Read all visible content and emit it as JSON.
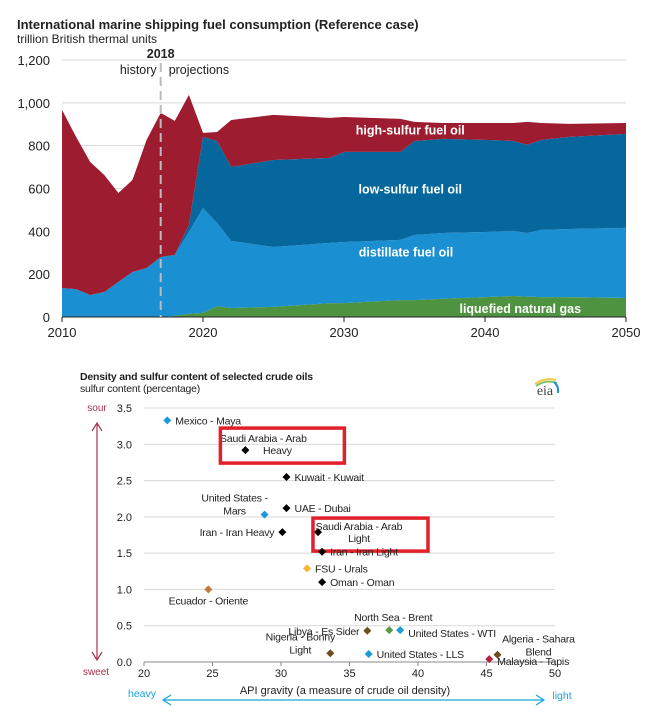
{
  "chart_data": [
    {
      "type": "area",
      "stacked": true,
      "title": "International marine shipping fuel consumption (Reference case)",
      "subtitle": "trillion British thermal units",
      "xlabel": "",
      "ylabel": "trillion British thermal units",
      "xlim": [
        2010,
        2050
      ],
      "ylim": [
        0,
        1200
      ],
      "xticks": [
        "2010",
        "2020",
        "2030",
        "2040",
        "2050"
      ],
      "yticks": [
        "0",
        "200",
        "400",
        "600",
        "800",
        "1,000",
        "1,200"
      ],
      "grid": true,
      "divider": {
        "year": 2017,
        "label": "2018",
        "left_label": "history",
        "right_label": "projections"
      },
      "x": [
        2010,
        2011,
        2012,
        2013,
        2014,
        2015,
        2016,
        2017,
        2018,
        2019,
        2020,
        2021,
        2022,
        2025,
        2029,
        2030,
        2034,
        2035,
        2037,
        2040,
        2042,
        2043,
        2044,
        2046,
        2050
      ],
      "series": [
        {
          "name": "liquefied natural gas",
          "color": "#4e9340",
          "values": [
            0,
            0,
            0,
            0,
            0,
            0,
            0,
            0,
            5,
            15,
            19,
            50,
            42,
            47,
            65,
            65,
            79,
            79,
            85,
            93,
            98,
            95,
            93,
            93,
            89
          ]
        },
        {
          "name": "distillate fuel oil",
          "color": "#1a90d2",
          "values": [
            135,
            130,
            103,
            117,
            164,
            210,
            229,
            280,
            285,
            382,
            490,
            389,
            313,
            280,
            281,
            285,
            281,
            304,
            307,
            304,
            304,
            297,
            314,
            318,
            327
          ]
        },
        {
          "name": "low-sulfur fuel oil",
          "color": "#06679c",
          "values": [
            0,
            0,
            0,
            0,
            0,
            0,
            0,
            0,
            0,
            33,
            332,
            383,
            346,
            406,
            397,
            421,
            411,
            439,
            440,
            430,
            420,
            412,
            420,
            430,
            439
          ]
        },
        {
          "name": "high-sulfur fuel oil",
          "color": "#9d1c30",
          "values": [
            832,
            711,
            621,
            546,
            415,
            430,
            598,
            673,
            626,
            607,
            19,
            42,
            219,
            211,
            187,
            163,
            154,
            89,
            74,
            79,
            84,
            107,
            79,
            61,
            51
          ]
        }
      ]
    },
    {
      "type": "scatter",
      "title": "Density and sulfur content of selected crude oils",
      "subtitle": "sulfur content (percentage)",
      "xlabel": "API gravity (a measure of crude oil density)",
      "ylabel": "sulfur content (percentage)",
      "xlim": [
        20,
        50
      ],
      "ylim": [
        0,
        3.5
      ],
      "xticks": [
        "20",
        "25",
        "30",
        "35",
        "40",
        "45",
        "50"
      ],
      "yticks": [
        "0.0",
        "0.5",
        "1.0",
        "1.5",
        "2.0",
        "2.5",
        "3.0",
        "3.5"
      ],
      "grid": true,
      "y_arrow": {
        "top": "sour",
        "bottom": "sweet"
      },
      "x_arrow": {
        "left": "heavy",
        "right": "light"
      },
      "points": [
        {
          "label": [
            "Mexico - Maya"
          ],
          "x": 21.7,
          "y": 3.33,
          "color": "#1a9ad6",
          "label_pos": "right",
          "highlight": false
        },
        {
          "label": [
            "Saudi Arabia - Arab",
            "Heavy"
          ],
          "x": 27.4,
          "y": 2.92,
          "color": "#000000",
          "label_pos": "right-two",
          "highlight": true
        },
        {
          "label": [
            "Kuwait - Kuwait"
          ],
          "x": 30.4,
          "y": 2.55,
          "color": "#000000",
          "label_pos": "right",
          "highlight": false
        },
        {
          "label": [
            "UAE - Dubai"
          ],
          "x": 30.4,
          "y": 2.12,
          "color": "#000000",
          "label_pos": "right",
          "highlight": false
        },
        {
          "label": [
            "United States -",
            "Mars"
          ],
          "x": 28.8,
          "y": 2.03,
          "color": "#1a9ad6",
          "label_pos": "left-two",
          "highlight": false
        },
        {
          "label": [
            "Iran - Iran Heavy"
          ],
          "x": 30.1,
          "y": 1.79,
          "color": "#000000",
          "label_pos": "left",
          "highlight": false
        },
        {
          "label": [
            "Saudi Arabia - Arab",
            "Light"
          ],
          "x": 32.7,
          "y": 1.79,
          "color": "#000000",
          "label_pos": "right-two",
          "highlight": true
        },
        {
          "label": [
            "Iran - Iran Light"
          ],
          "x": 33.0,
          "y": 1.52,
          "color": "#000000",
          "label_pos": "right",
          "highlight": false
        },
        {
          "label": [
            "FSU - Urals"
          ],
          "x": 31.9,
          "y": 1.29,
          "color": "#f6b731",
          "label_pos": "right",
          "highlight": false
        },
        {
          "label": [
            "Oman - Oman"
          ],
          "x": 33.0,
          "y": 1.1,
          "color": "#000000",
          "label_pos": "right",
          "highlight": false
        },
        {
          "label": [
            "Ecuador - Oriente"
          ],
          "x": 24.7,
          "y": 1.0,
          "color": "#c07a3c",
          "label_pos": "below",
          "highlight": false
        },
        {
          "label": [
            "Libya - Es Sider"
          ],
          "x": 36.3,
          "y": 0.43,
          "color": "#6e4d1e",
          "label_pos": "left",
          "highlight": false
        },
        {
          "label": [
            "North Sea - Brent"
          ],
          "x": 37.9,
          "y": 0.44,
          "color": "#5a9a45",
          "label_pos": "above",
          "highlight": false
        },
        {
          "label": [
            "United States - WTI"
          ],
          "x": 38.7,
          "y": 0.44,
          "color": "#1a9ad6",
          "label_pos": "right-low",
          "highlight": false
        },
        {
          "label": [
            "Nigeria - Bonny",
            "Light"
          ],
          "x": 33.6,
          "y": 0.12,
          "color": "#6e4d1e",
          "label_pos": "left-two",
          "highlight": false
        },
        {
          "label": [
            "United States - LLS"
          ],
          "x": 36.4,
          "y": 0.11,
          "color": "#1a9ad6",
          "label_pos": "right",
          "highlight": false
        },
        {
          "label": [
            "Algeria - Sahara",
            "Blend"
          ],
          "x": 45.8,
          "y": 0.1,
          "color": "#6e4d1e",
          "label_pos": "above-right",
          "highlight": false
        },
        {
          "label": [
            "Malaysia - Tapis"
          ],
          "x": 45.2,
          "y": 0.04,
          "color": "#b02540",
          "label_pos": "right-below",
          "highlight": false
        }
      ]
    }
  ],
  "logo": {
    "text": "eia"
  },
  "colors": {
    "highlight_box": "#e2202a",
    "sour_sweet": "#a6324c",
    "heavy_light": "#1aa3d9",
    "grid": "#d9d9d9"
  }
}
